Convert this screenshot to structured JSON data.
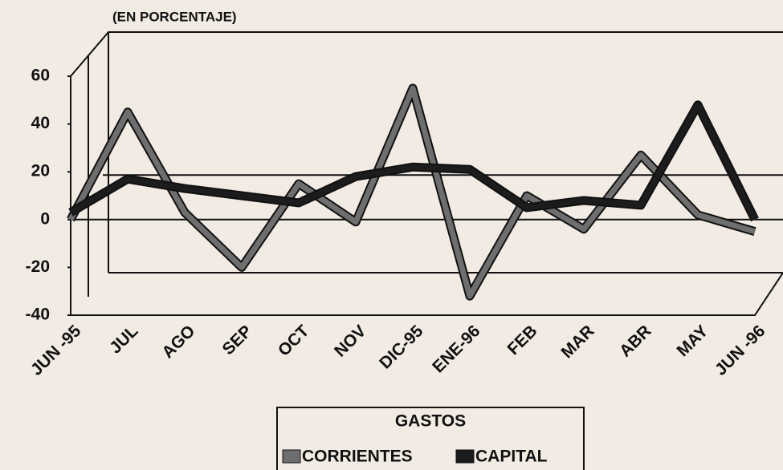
{
  "chart_data": {
    "type": "line",
    "title": "(EN PORCENTAJE)",
    "categories": [
      "JUN -95",
      "JUL",
      "AGO",
      "SEP",
      "OCT",
      "NOV",
      "DIC-95",
      "ENE-96",
      "FEB",
      "MAR",
      "ABR",
      "MAY",
      "JUN -96"
    ],
    "series": [
      {
        "name": "CORRIENTES",
        "color": "#6e6e6e",
        "values": [
          0,
          45,
          3,
          -20,
          15,
          -1,
          55,
          -32,
          10,
          -4,
          27,
          2,
          -5
        ]
      },
      {
        "name": "CAPITAL",
        "color": "#1c1c1c",
        "values": [
          3,
          17,
          13,
          10,
          7,
          18,
          22,
          21,
          5,
          8,
          6,
          48,
          0
        ]
      }
    ],
    "legend_title": "GASTOS",
    "ylim": [
      -40,
      60
    ],
    "yticks": [
      -40,
      -20,
      0,
      20,
      40,
      60
    ]
  }
}
